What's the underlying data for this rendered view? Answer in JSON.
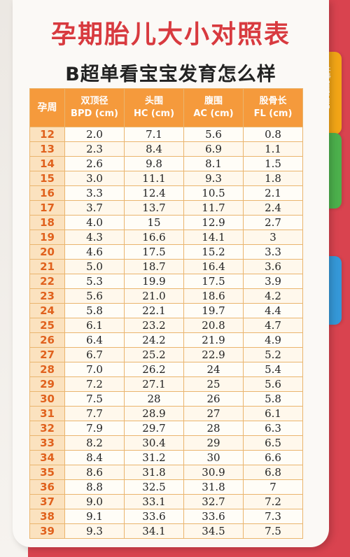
{
  "title": "孕期胎儿大小对照表",
  "subtitle": "B超单看宝宝发育怎么样",
  "tab_label": "Dr.Plume 博士",
  "colors": {
    "header_bg": "#f59a3c",
    "title_red": "#d83a3f",
    "week_text": "#e0611d",
    "background": "#d9434f"
  },
  "table": {
    "headers": [
      {
        "line1": "孕周",
        "line2": ""
      },
      {
        "line1": "双顶径",
        "line2": "BPD (cm)"
      },
      {
        "line1": "头围",
        "line2": "HC (cm)"
      },
      {
        "line1": "腹围",
        "line2": "AC (cm)"
      },
      {
        "line1": "股骨长",
        "line2": "FL (cm)"
      }
    ],
    "rows": [
      [
        "12",
        "2.0",
        "7.1",
        "5.6",
        "0.8"
      ],
      [
        "13",
        "2.3",
        "8.4",
        "6.9",
        "1.1"
      ],
      [
        "14",
        "2.6",
        "9.8",
        "8.1",
        "1.5"
      ],
      [
        "15",
        "3.0",
        "11.1",
        "9.3",
        "1.8"
      ],
      [
        "16",
        "3.3",
        "12.4",
        "10.5",
        "2.1"
      ],
      [
        "17",
        "3.7",
        "13.7",
        "11.7",
        "2.4"
      ],
      [
        "18",
        "4.0",
        "15",
        "12.9",
        "2.7"
      ],
      [
        "19",
        "4.3",
        "16.6",
        "14.1",
        "3"
      ],
      [
        "20",
        "4.6",
        "17.5",
        "15.2",
        "3.3"
      ],
      [
        "21",
        "5.0",
        "18.7",
        "16.4",
        "3.6"
      ],
      [
        "22",
        "5.3",
        "19.9",
        "17.5",
        "3.9"
      ],
      [
        "23",
        "5.6",
        "21.0",
        "18.6",
        "4.2"
      ],
      [
        "24",
        "5.8",
        "22.1",
        "19.7",
        "4.4"
      ],
      [
        "25",
        "6.1",
        "23.2",
        "20.8",
        "4.7"
      ],
      [
        "26",
        "6.4",
        "24.2",
        "21.9",
        "4.9"
      ],
      [
        "27",
        "6.7",
        "25.2",
        "22.9",
        "5.2"
      ],
      [
        "28",
        "7.0",
        "26.2",
        "24",
        "5.4"
      ],
      [
        "29",
        "7.2",
        "27.1",
        "25",
        "5.6"
      ],
      [
        "30",
        "7.5",
        "28",
        "26",
        "5.8"
      ],
      [
        "31",
        "7.7",
        "28.9",
        "27",
        "6.1"
      ],
      [
        "32",
        "7.9",
        "29.7",
        "28",
        "6.3"
      ],
      [
        "33",
        "8.2",
        "30.4",
        "29",
        "6.5"
      ],
      [
        "34",
        "8.4",
        "31.2",
        "30",
        "6.6"
      ],
      [
        "35",
        "8.6",
        "31.8",
        "30.9",
        "6.8"
      ],
      [
        "36",
        "8.8",
        "32.5",
        "31.8",
        "7"
      ],
      [
        "37",
        "9.0",
        "33.1",
        "32.7",
        "7.2"
      ],
      [
        "38",
        "9.1",
        "33.6",
        "33.6",
        "7.3"
      ],
      [
        "39",
        "9.3",
        "34.1",
        "34.5",
        "7.5"
      ]
    ]
  }
}
